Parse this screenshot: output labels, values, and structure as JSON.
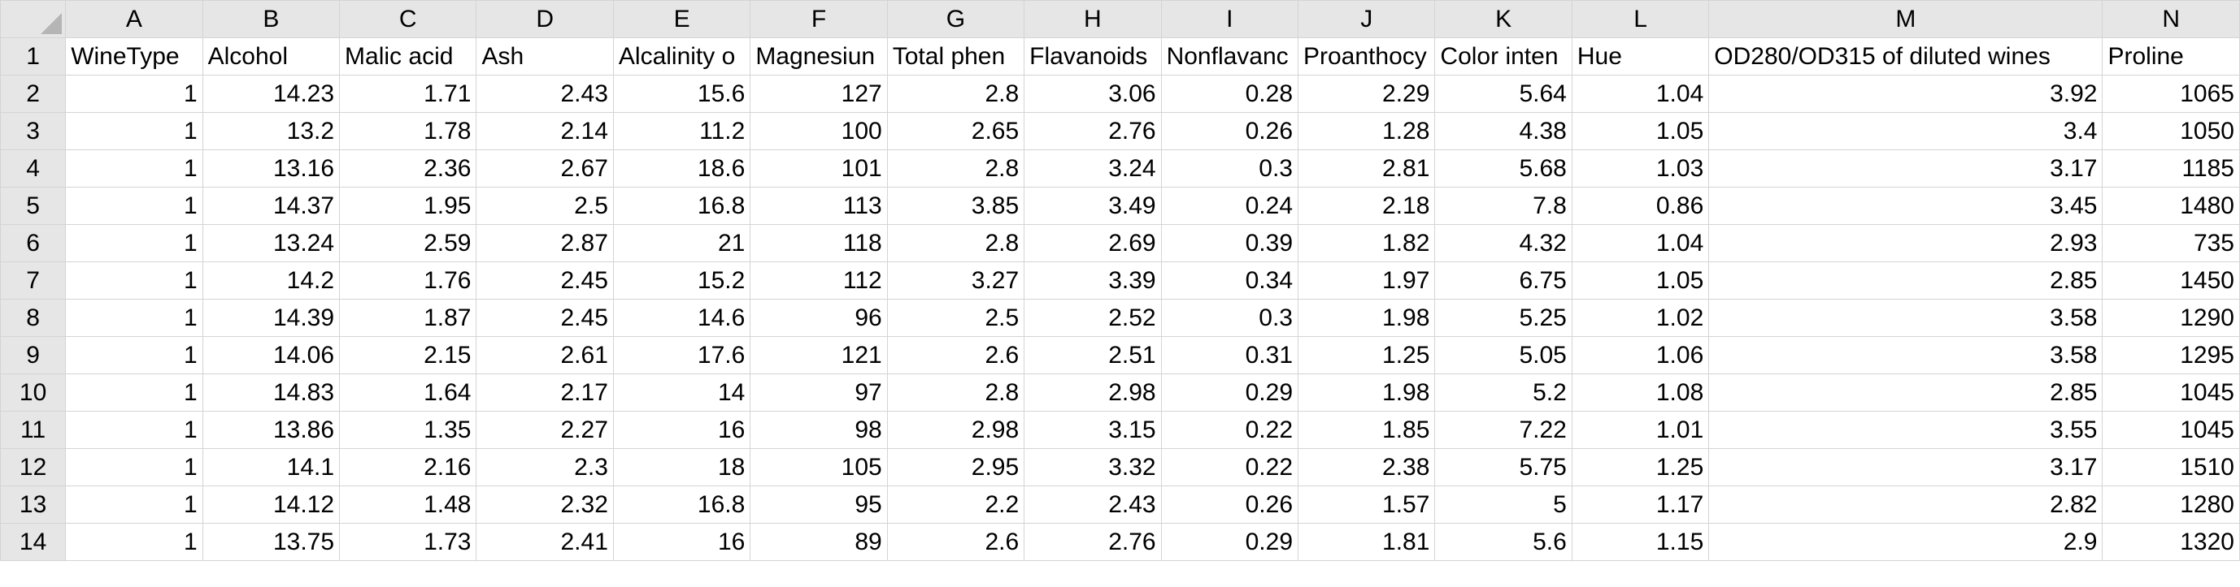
{
  "columns": [
    "A",
    "B",
    "C",
    "D",
    "E",
    "F",
    "G",
    "H",
    "I",
    "J",
    "K",
    "L",
    "M",
    "N"
  ],
  "rows": [
    {
      "n": "1",
      "cells": [
        "WineType",
        "Alcohol",
        "Malic acid",
        "Ash",
        "Alcalinity o",
        "Magnesiun",
        "Total phen",
        "Flavanoids",
        "Nonflavanc",
        "Proanthocy",
        "Color inten",
        "Hue",
        "OD280/OD315 of diluted wines",
        "Proline"
      ]
    },
    {
      "n": "2",
      "cells": [
        "1",
        "14.23",
        "1.71",
        "2.43",
        "15.6",
        "127",
        "2.8",
        "3.06",
        "0.28",
        "2.29",
        "5.64",
        "1.04",
        "3.92",
        "1065"
      ]
    },
    {
      "n": "3",
      "cells": [
        "1",
        "13.2",
        "1.78",
        "2.14",
        "11.2",
        "100",
        "2.65",
        "2.76",
        "0.26",
        "1.28",
        "4.38",
        "1.05",
        "3.4",
        "1050"
      ]
    },
    {
      "n": "4",
      "cells": [
        "1",
        "13.16",
        "2.36",
        "2.67",
        "18.6",
        "101",
        "2.8",
        "3.24",
        "0.3",
        "2.81",
        "5.68",
        "1.03",
        "3.17",
        "1185"
      ]
    },
    {
      "n": "5",
      "cells": [
        "1",
        "14.37",
        "1.95",
        "2.5",
        "16.8",
        "113",
        "3.85",
        "3.49",
        "0.24",
        "2.18",
        "7.8",
        "0.86",
        "3.45",
        "1480"
      ]
    },
    {
      "n": "6",
      "cells": [
        "1",
        "13.24",
        "2.59",
        "2.87",
        "21",
        "118",
        "2.8",
        "2.69",
        "0.39",
        "1.82",
        "4.32",
        "1.04",
        "2.93",
        "735"
      ]
    },
    {
      "n": "7",
      "cells": [
        "1",
        "14.2",
        "1.76",
        "2.45",
        "15.2",
        "112",
        "3.27",
        "3.39",
        "0.34",
        "1.97",
        "6.75",
        "1.05",
        "2.85",
        "1450"
      ]
    },
    {
      "n": "8",
      "cells": [
        "1",
        "14.39",
        "1.87",
        "2.45",
        "14.6",
        "96",
        "2.5",
        "2.52",
        "0.3",
        "1.98",
        "5.25",
        "1.02",
        "3.58",
        "1290"
      ]
    },
    {
      "n": "9",
      "cells": [
        "1",
        "14.06",
        "2.15",
        "2.61",
        "17.6",
        "121",
        "2.6",
        "2.51",
        "0.31",
        "1.25",
        "5.05",
        "1.06",
        "3.58",
        "1295"
      ]
    },
    {
      "n": "10",
      "cells": [
        "1",
        "14.83",
        "1.64",
        "2.17",
        "14",
        "97",
        "2.8",
        "2.98",
        "0.29",
        "1.98",
        "5.2",
        "1.08",
        "2.85",
        "1045"
      ]
    },
    {
      "n": "11",
      "cells": [
        "1",
        "13.86",
        "1.35",
        "2.27",
        "16",
        "98",
        "2.98",
        "3.15",
        "0.22",
        "1.85",
        "7.22",
        "1.01",
        "3.55",
        "1045"
      ]
    },
    {
      "n": "12",
      "cells": [
        "1",
        "14.1",
        "2.16",
        "2.3",
        "18",
        "105",
        "2.95",
        "3.32",
        "0.22",
        "2.38",
        "5.75",
        "1.25",
        "3.17",
        "1510"
      ]
    },
    {
      "n": "13",
      "cells": [
        "1",
        "14.12",
        "1.48",
        "2.32",
        "16.8",
        "95",
        "2.2",
        "2.43",
        "0.26",
        "1.57",
        "5",
        "1.17",
        "2.82",
        "1280"
      ]
    },
    {
      "n": "14",
      "cells": [
        "1",
        "13.75",
        "1.73",
        "2.41",
        "16",
        "89",
        "2.6",
        "2.76",
        "0.29",
        "1.81",
        "5.6",
        "1.15",
        "2.9",
        "1320"
      ]
    }
  ]
}
